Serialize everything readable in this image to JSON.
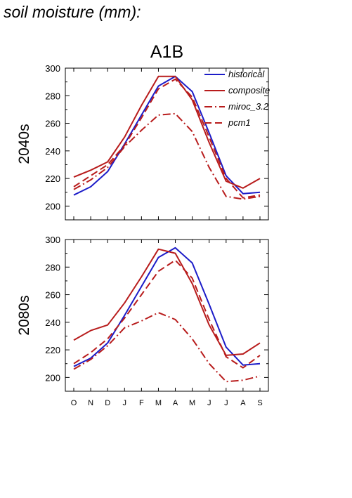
{
  "page_title": "soil moisture (mm):",
  "colors": {
    "historical": "#1c1cc8",
    "model": "#b81c1c"
  },
  "chart_data": [
    {
      "type": "line",
      "title": "A1B",
      "ylabel": "2040s",
      "ylim": [
        190,
        300
      ],
      "yticks": [
        200,
        220,
        240,
        260,
        280,
        300
      ],
      "categories": [
        "O",
        "N",
        "D",
        "J",
        "F",
        "M",
        "A",
        "M",
        "J",
        "J",
        "A",
        "S"
      ],
      "legend_position": "top-right",
      "series": [
        {
          "name": "historical",
          "style": "solid",
          "color": "#1c1cc8",
          "values": [
            208,
            214,
            225,
            245,
            266,
            287,
            294,
            283,
            253,
            222,
            209,
            210
          ]
        },
        {
          "name": "composite",
          "style": "solid",
          "color": "#b81c1c",
          "values": [
            221,
            226,
            232,
            250,
            273,
            294,
            294,
            277,
            246,
            218,
            213,
            220
          ]
        },
        {
          "name": "miroc_3.2",
          "style": "dashdot",
          "color": "#b81c1c",
          "values": [
            212,
            219,
            228,
            243,
            255,
            266,
            267,
            254,
            228,
            207,
            205,
            207
          ]
        },
        {
          "name": "pcm1",
          "style": "dashed",
          "color": "#b81c1c",
          "values": [
            214,
            222,
            230,
            244,
            264,
            285,
            292,
            279,
            250,
            220,
            206,
            208
          ]
        }
      ]
    },
    {
      "type": "line",
      "title": "",
      "ylabel": "2080s",
      "ylim": [
        190,
        300
      ],
      "yticks": [
        200,
        220,
        240,
        260,
        280,
        300
      ],
      "categories": [
        "O",
        "N",
        "D",
        "J",
        "F",
        "M",
        "A",
        "M",
        "J",
        "J",
        "A",
        "S"
      ],
      "series": [
        {
          "name": "historical",
          "style": "solid",
          "color": "#1c1cc8",
          "values": [
            208,
            214,
            225,
            245,
            266,
            287,
            294,
            283,
            253,
            222,
            209,
            210
          ]
        },
        {
          "name": "composite",
          "style": "solid",
          "color": "#b81c1c",
          "values": [
            227,
            234,
            238,
            254,
            273,
            293,
            290,
            268,
            238,
            216,
            217,
            225
          ]
        },
        {
          "name": "miroc_3.2",
          "style": "dashdot",
          "color": "#b81c1c",
          "values": [
            206,
            213,
            223,
            236,
            241,
            247,
            242,
            228,
            210,
            197,
            198,
            201
          ]
        },
        {
          "name": "pcm1",
          "style": "dashed",
          "color": "#b81c1c",
          "values": [
            210,
            218,
            228,
            243,
            260,
            277,
            285,
            272,
            242,
            215,
            207,
            216
          ]
        }
      ]
    }
  ]
}
